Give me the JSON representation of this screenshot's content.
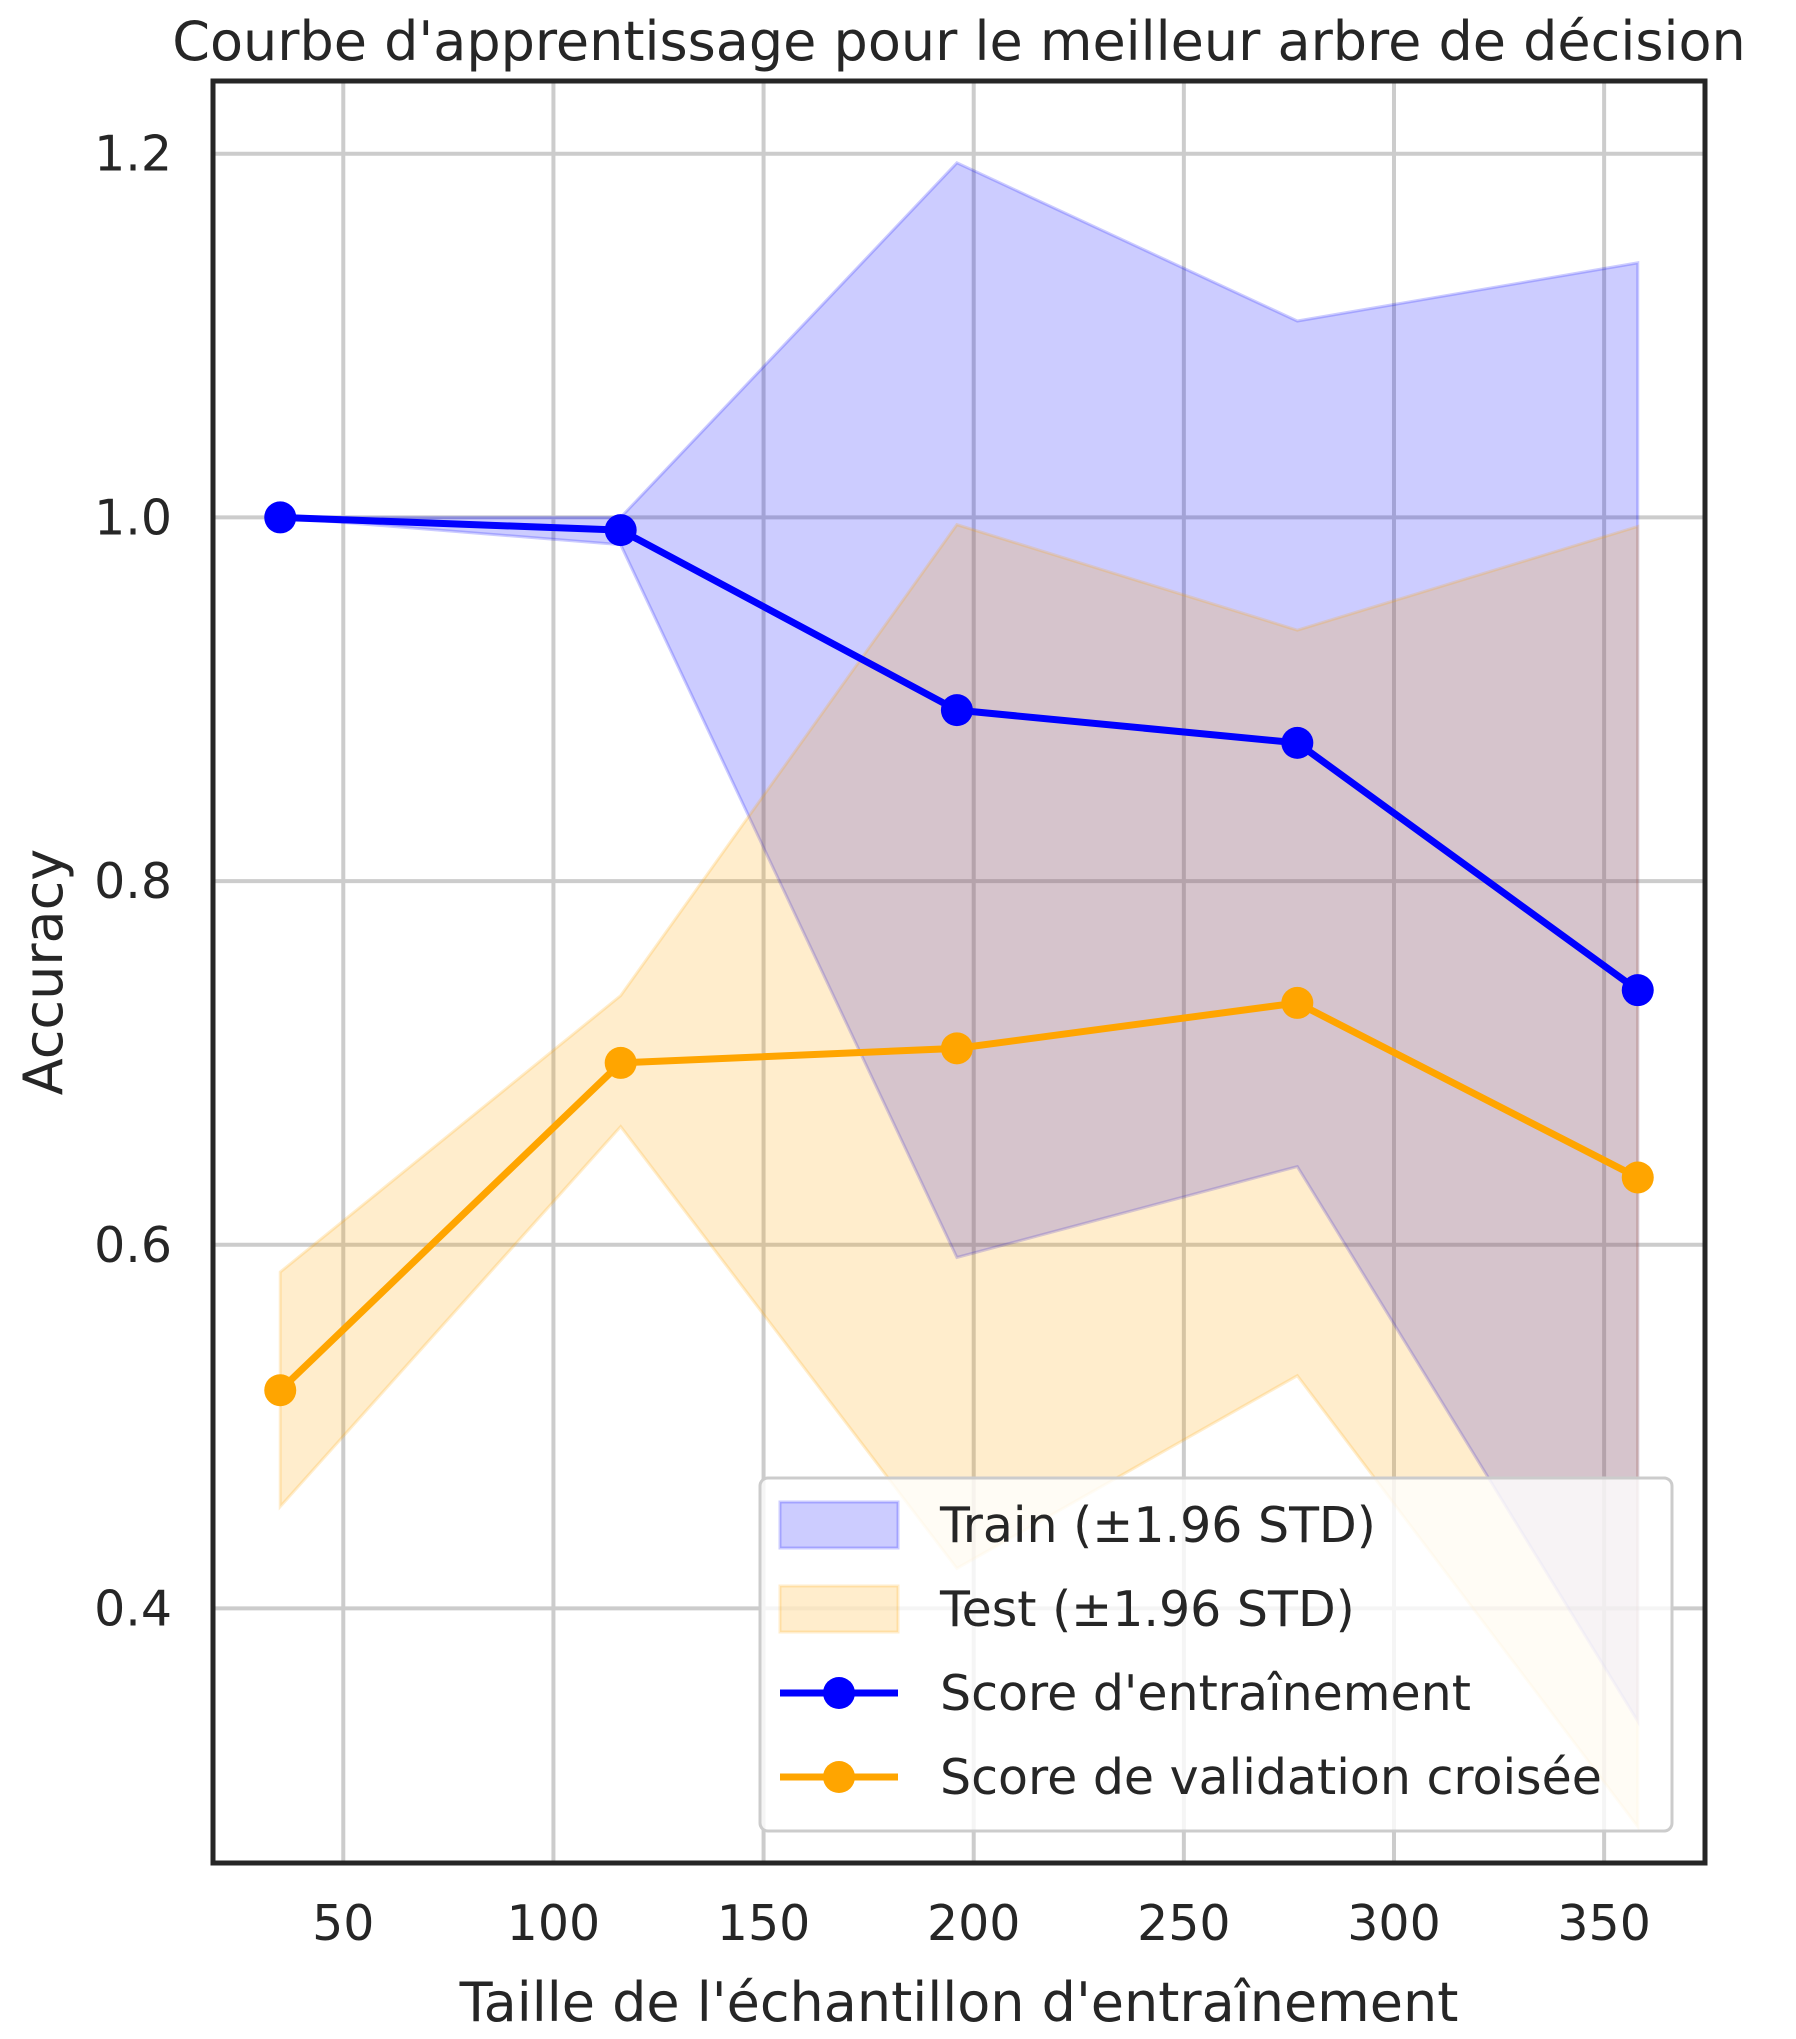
{
  "chart_data": {
    "type": "line",
    "title": "Courbe d'apprentissage pour le meilleur arbre de décision",
    "xlabel": "Taille de l'échantillon d'entraînement",
    "ylabel": "Accuracy",
    "xlim": [
      19,
      374
    ],
    "ylim": [
      0.26,
      1.24
    ],
    "xticks": [
      50,
      100,
      150,
      200,
      250,
      300,
      350
    ],
    "yticks": [
      0.4,
      0.6,
      0.8,
      1.0,
      1.2
    ],
    "xtick_labels": [
      "50",
      "100",
      "150",
      "200",
      "250",
      "300",
      "350"
    ],
    "ytick_labels": [
      "0.4",
      "0.6",
      "0.8",
      "1.0",
      "1.2"
    ],
    "grid": true,
    "legend_position": "bottom-right",
    "x": [
      35,
      116,
      196,
      277,
      358
    ],
    "bands": [
      {
        "name": "Train (±1.96 STD)",
        "color": "#0000ff",
        "lower": [
          1.0,
          0.985,
          0.593,
          0.643,
          0.338
        ],
        "upper": [
          1.0,
          1.0,
          1.195,
          1.108,
          1.14
        ]
      },
      {
        "name": "Test (±1.96 STD)",
        "color": "#ffa500",
        "lower": [
          0.456,
          0.665,
          0.422,
          0.528,
          0.28
        ],
        "upper": [
          0.585,
          0.737,
          0.996,
          0.938,
          0.995
        ]
      }
    ],
    "series": [
      {
        "name": "Score d'entraînement",
        "color": "#0000ff",
        "values": [
          1.0,
          0.993,
          0.894,
          0.876,
          0.74
        ]
      },
      {
        "name": "Score de validation croisée",
        "color": "#ffa500",
        "values": [
          0.52,
          0.7,
          0.708,
          0.733,
          0.637
        ]
      }
    ]
  }
}
